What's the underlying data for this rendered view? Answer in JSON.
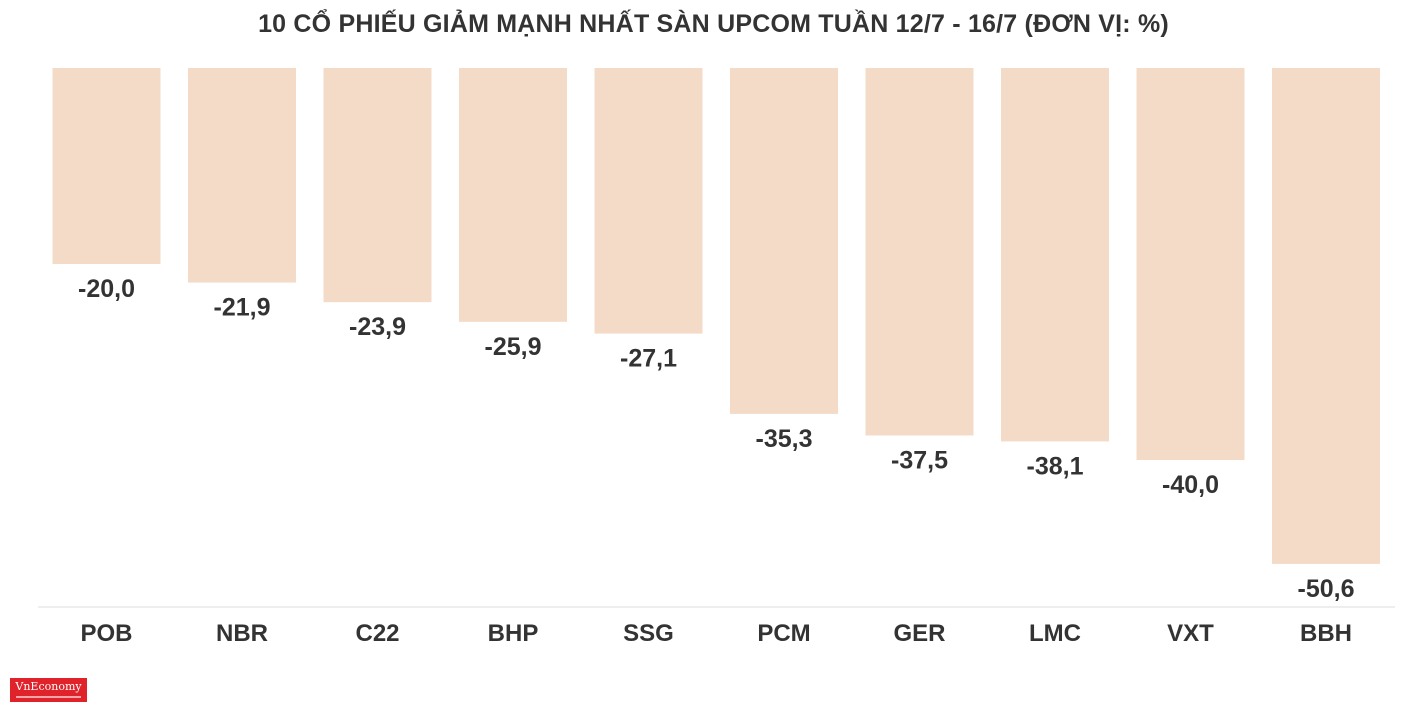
{
  "chart_data": {
    "type": "bar",
    "title": "10 CỔ PHIẾU GIẢM MẠNH NHẤT SÀN UPCOM TUẦN 12/7 - 16/7 (ĐƠN VỊ: %)",
    "categories": [
      "POB",
      "NBR",
      "C22",
      "BHP",
      "SSG",
      "PCM",
      "GER",
      "LMC",
      "VXT",
      "BBH"
    ],
    "values": [
      -20.0,
      -21.9,
      -23.9,
      -25.9,
      -27.1,
      -35.3,
      -37.5,
      -38.1,
      -40.0,
      -50.6
    ],
    "value_labels": [
      "-20,0",
      "-21,9",
      "-23,9",
      "-25,9",
      "-27,1",
      "-35,3",
      "-37,5",
      "-38,1",
      "-40,0",
      "-50,6"
    ],
    "xlabel": "",
    "ylabel": "",
    "ylim": [
      -55,
      0
    ],
    "grid": false,
    "legend": "none",
    "bar_color": "#f3dbc8",
    "axis_color": "#dddddd",
    "text_color": "#333333"
  },
  "brand": {
    "logo_text": "VnEconomy",
    "logo_color": "#e0222a"
  }
}
